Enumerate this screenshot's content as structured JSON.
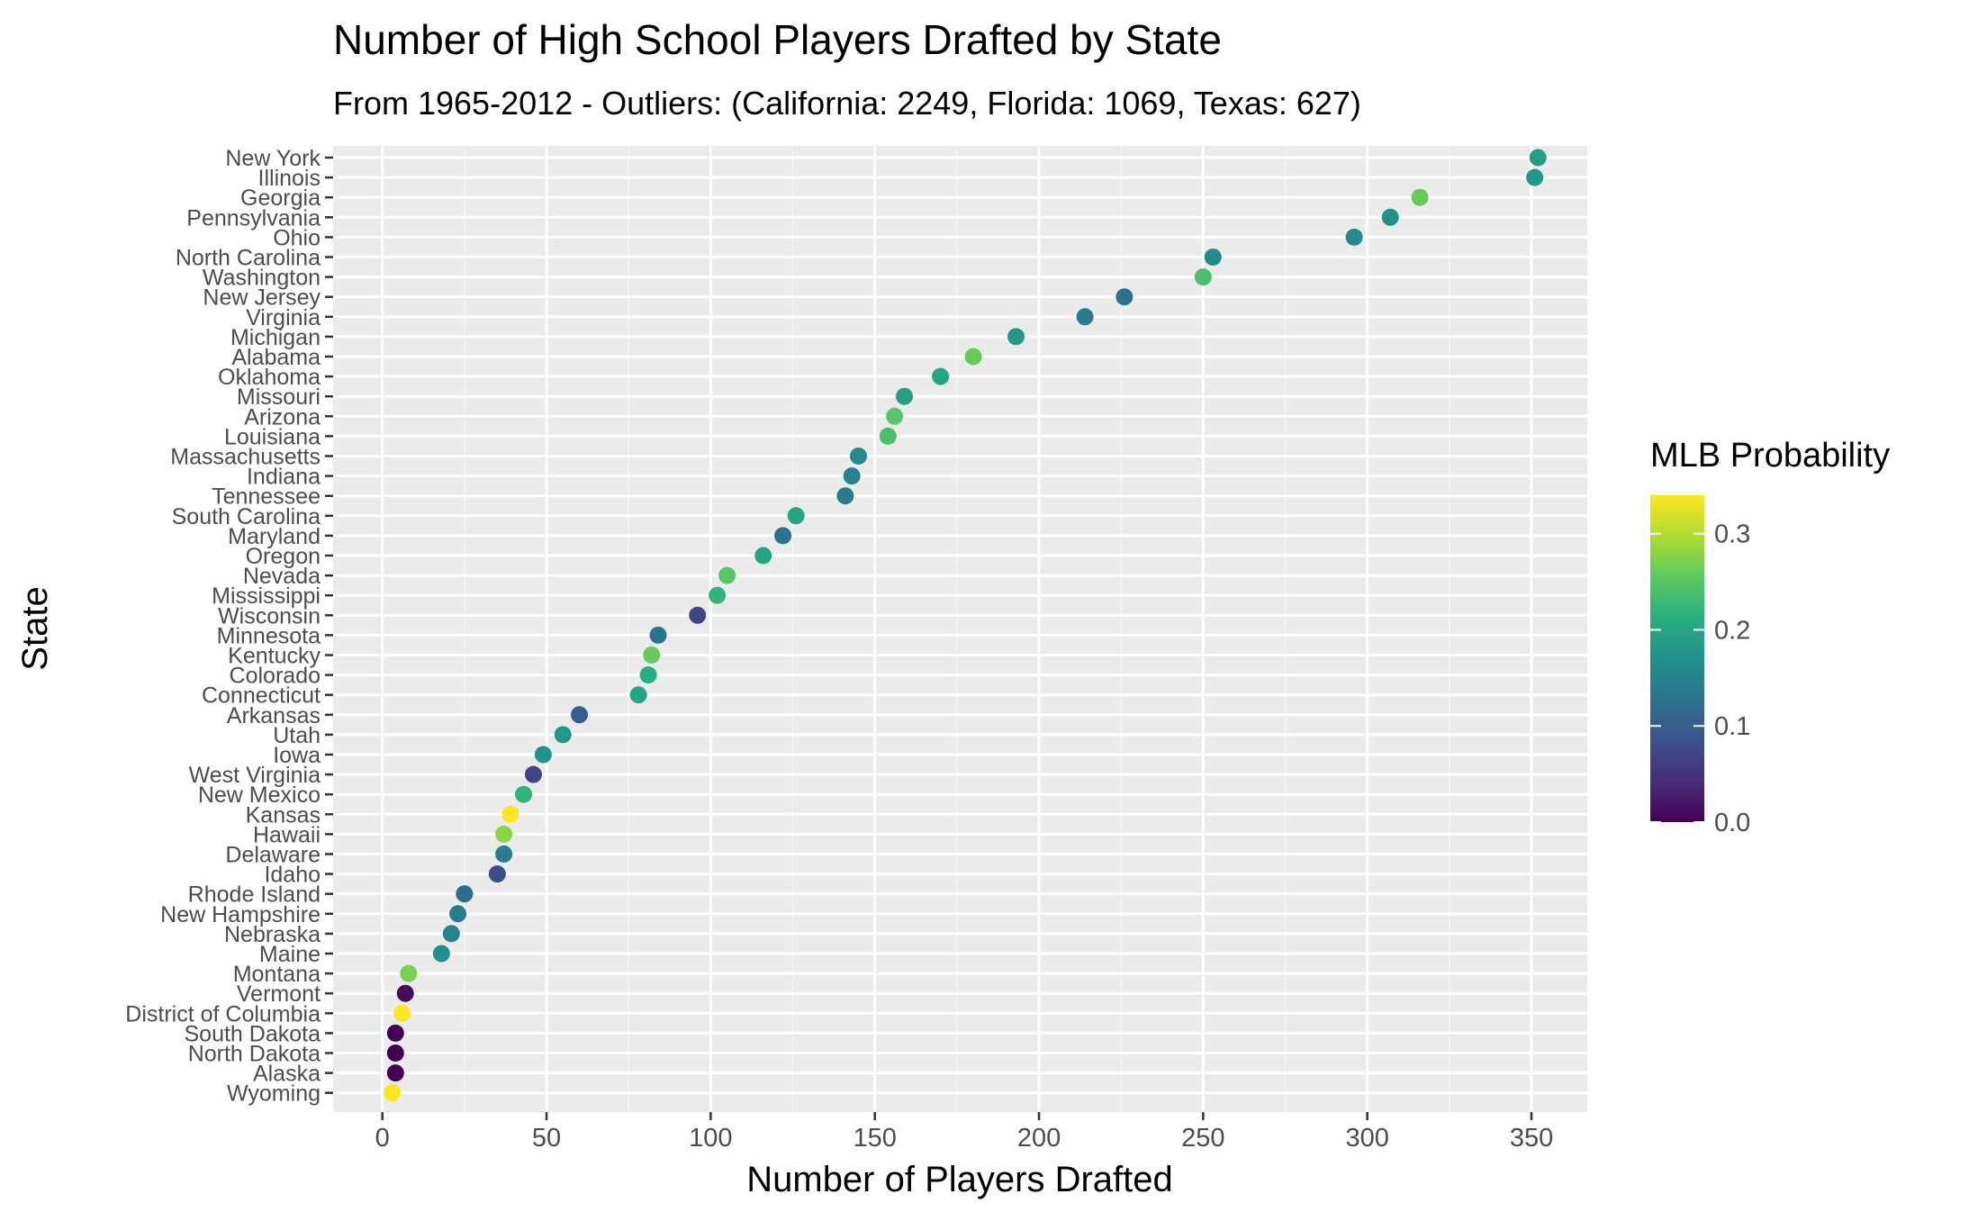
{
  "chart_data": {
    "type": "scatter",
    "title": "Number of High School Players Drafted by State",
    "subtitle": "From 1965-2012 - Outliers: (California: 2249, Florida: 1069, Texas: 627)",
    "xlabel": "Number of Players Drafted",
    "ylabel": "State",
    "xlim": [
      -15,
      367
    ],
    "x_ticks": [
      0,
      50,
      100,
      150,
      200,
      250,
      300,
      350
    ],
    "x_tick_labels": [
      "0",
      "50",
      "100",
      "150",
      "200",
      "250",
      "300",
      "350"
    ],
    "grid": true,
    "color_scale": {
      "title": "MLB Probability",
      "palette": "viridis",
      "range": [
        0,
        0.34
      ],
      "ticks": [
        0.0,
        0.1,
        0.2,
        0.3
      ],
      "tick_labels": [
        "0.0",
        "0.1",
        "0.2",
        "0.3"
      ],
      "legend_position": "right"
    },
    "points": [
      {
        "state": "New York",
        "x": 352,
        "prob": 0.19
      },
      {
        "state": "Illinois",
        "x": 351,
        "prob": 0.18
      },
      {
        "state": "Georgia",
        "x": 316,
        "prob": 0.26
      },
      {
        "state": "Pennsylvania",
        "x": 307,
        "prob": 0.17
      },
      {
        "state": "Ohio",
        "x": 296,
        "prob": 0.16
      },
      {
        "state": "North Carolina",
        "x": 253,
        "prob": 0.16
      },
      {
        "state": "Washington",
        "x": 250,
        "prob": 0.24
      },
      {
        "state": "New Jersey",
        "x": 226,
        "prob": 0.13
      },
      {
        "state": "Virginia",
        "x": 214,
        "prob": 0.14
      },
      {
        "state": "Michigan",
        "x": 193,
        "prob": 0.18
      },
      {
        "state": "Alabama",
        "x": 180,
        "prob": 0.26
      },
      {
        "state": "Oklahoma",
        "x": 170,
        "prob": 0.2
      },
      {
        "state": "Missouri",
        "x": 159,
        "prob": 0.19
      },
      {
        "state": "Arizona",
        "x": 156,
        "prob": 0.25
      },
      {
        "state": "Louisiana",
        "x": 154,
        "prob": 0.24
      },
      {
        "state": "Massachusetts",
        "x": 145,
        "prob": 0.16
      },
      {
        "state": "Indiana",
        "x": 143,
        "prob": 0.15
      },
      {
        "state": "Tennessee",
        "x": 141,
        "prob": 0.14
      },
      {
        "state": "South Carolina",
        "x": 126,
        "prob": 0.2
      },
      {
        "state": "Maryland",
        "x": 122,
        "prob": 0.13
      },
      {
        "state": "Oregon",
        "x": 116,
        "prob": 0.2
      },
      {
        "state": "Nevada",
        "x": 105,
        "prob": 0.25
      },
      {
        "state": "Mississippi",
        "x": 102,
        "prob": 0.22
      },
      {
        "state": "Wisconsin",
        "x": 96,
        "prob": 0.07
      },
      {
        "state": "Minnesota",
        "x": 84,
        "prob": 0.13
      },
      {
        "state": "Kentucky",
        "x": 82,
        "prob": 0.26
      },
      {
        "state": "Colorado",
        "x": 81,
        "prob": 0.21
      },
      {
        "state": "Connecticut",
        "x": 78,
        "prob": 0.2
      },
      {
        "state": "Arkansas",
        "x": 60,
        "prob": 0.1
      },
      {
        "state": "Utah",
        "x": 55,
        "prob": 0.18
      },
      {
        "state": "Iowa",
        "x": 49,
        "prob": 0.17
      },
      {
        "state": "West Virginia",
        "x": 46,
        "prob": 0.07
      },
      {
        "state": "New Mexico",
        "x": 43,
        "prob": 0.22
      },
      {
        "state": "Kansas",
        "x": 39,
        "prob": 0.34
      },
      {
        "state": "Hawaii",
        "x": 37,
        "prob": 0.28
      },
      {
        "state": "Delaware",
        "x": 37,
        "prob": 0.14
      },
      {
        "state": "Idaho",
        "x": 35,
        "prob": 0.08
      },
      {
        "state": "Rhode Island",
        "x": 25,
        "prob": 0.12
      },
      {
        "state": "New Hampshire",
        "x": 23,
        "prob": 0.14
      },
      {
        "state": "Nebraska",
        "x": 21,
        "prob": 0.15
      },
      {
        "state": "Maine",
        "x": 18,
        "prob": 0.17
      },
      {
        "state": "Montana",
        "x": 8,
        "prob": 0.27
      },
      {
        "state": "Vermont",
        "x": 7,
        "prob": 0.01
      },
      {
        "state": "District of Columbia",
        "x": 6,
        "prob": 0.34
      },
      {
        "state": "South Dakota",
        "x": 4,
        "prob": 0.0
      },
      {
        "state": "North Dakota",
        "x": 4,
        "prob": 0.0
      },
      {
        "state": "Alaska",
        "x": 4,
        "prob": 0.0
      },
      {
        "state": "Wyoming",
        "x": 3,
        "prob": 0.34
      }
    ]
  }
}
